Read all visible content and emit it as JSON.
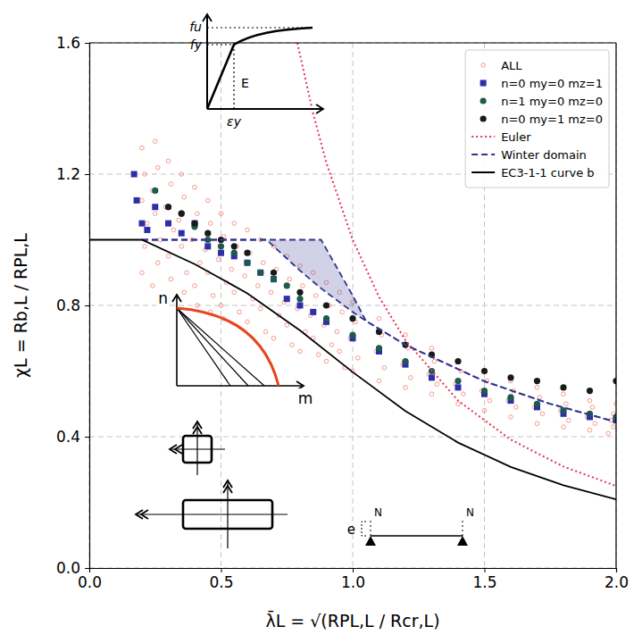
{
  "chart_data": {
    "type": "scatter",
    "x_label": "λ̄L = √(RPL,L / Rcr,L)",
    "y_label": "χL = Rb,L / RPL,L",
    "xlim": [
      0,
      2
    ],
    "ylim": [
      0,
      1.6
    ],
    "xticks": [
      {
        "value": 0,
        "label": "0.0"
      },
      {
        "value": 0.5,
        "label": "0.5"
      },
      {
        "value": 1,
        "label": "1.0"
      },
      {
        "value": 1.5,
        "label": "1.5"
      },
      {
        "value": 2,
        "label": "2.0"
      }
    ],
    "yticks": [
      {
        "value": 0,
        "label": "0.0"
      },
      0.4,
      0.8,
      1.2,
      1.6
    ],
    "grid": true,
    "legend": "upper right",
    "annotations": [
      "fu",
      "fy",
      "E",
      "εy",
      "n",
      "m",
      "e",
      "N",
      "N"
    ],
    "series": [
      {
        "name": "ALL",
        "type": "scatter",
        "marker": "circle-open",
        "color": "#f26b55",
        "x": [
          0.2,
          0.21,
          0.2,
          0.22,
          0.21,
          0.2,
          0.25,
          0.26,
          0.24,
          0.25,
          0.27,
          0.26,
          0.24,
          0.3,
          0.31,
          0.29,
          0.32,
          0.3,
          0.31,
          0.35,
          0.36,
          0.34,
          0.35,
          0.37,
          0.36,
          0.4,
          0.41,
          0.39,
          0.42,
          0.4,
          0.41,
          0.45,
          0.46,
          0.44,
          0.45,
          0.47,
          0.46,
          0.5,
          0.51,
          0.49,
          0.52,
          0.5,
          0.51,
          0.55,
          0.56,
          0.54,
          0.55,
          0.57,
          0.6,
          0.61,
          0.59,
          0.62,
          0.6,
          0.65,
          0.66,
          0.64,
          0.65,
          0.67,
          0.7,
          0.71,
          0.69,
          0.72,
          0.7,
          0.75,
          0.76,
          0.74,
          0.75,
          0.77,
          0.8,
          0.81,
          0.79,
          0.82,
          0.8,
          0.85,
          0.86,
          0.84,
          0.85,
          0.87,
          0.9,
          0.91,
          0.89,
          0.92,
          0.9,
          0.95,
          0.96,
          0.94,
          0.95,
          0.97,
          1.0,
          1.01,
          0.99,
          1.02,
          1.0,
          1.1,
          1.11,
          1.09,
          1.12,
          1.1,
          1.2,
          1.21,
          1.19,
          1.22,
          1.2,
          1.3,
          1.31,
          1.29,
          1.32,
          1.3,
          1.4,
          1.41,
          1.39,
          1.42,
          1.4,
          1.5,
          1.51,
          1.49,
          1.52,
          1.5,
          1.6,
          1.61,
          1.59,
          1.62,
          1.6,
          1.7,
          1.71,
          1.69,
          1.72,
          1.7,
          1.8,
          1.81,
          1.79,
          1.82,
          1.8,
          1.9,
          1.91,
          1.89,
          1.92,
          1.9,
          2.0,
          1.99,
          1.98,
          1.99,
          1.97
        ],
        "values": [
          1.28,
          1.2,
          1.12,
          1.05,
          0.98,
          0.9,
          1.3,
          1.22,
          1.15,
          1.08,
          1.0,
          0.93,
          0.86,
          1.24,
          1.17,
          1.1,
          1.03,
          0.95,
          0.88,
          1.2,
          1.13,
          1.06,
          0.98,
          0.9,
          0.84,
          1.16,
          1.08,
          1.0,
          0.93,
          0.86,
          0.8,
          1.12,
          1.05,
          0.97,
          0.9,
          0.83,
          0.78,
          1.08,
          1.01,
          0.94,
          0.87,
          0.8,
          0.76,
          1.05,
          0.98,
          0.91,
          0.84,
          0.78,
          1.03,
          0.96,
          0.89,
          0.82,
          0.75,
          1.0,
          0.93,
          0.86,
          0.79,
          0.72,
          0.98,
          0.91,
          0.84,
          0.77,
          0.7,
          0.95,
          0.88,
          0.81,
          0.74,
          0.68,
          0.92,
          0.86,
          0.79,
          0.72,
          0.66,
          0.9,
          0.83,
          0.77,
          0.7,
          0.65,
          0.87,
          0.8,
          0.74,
          0.68,
          0.63,
          0.84,
          0.78,
          0.72,
          0.66,
          0.61,
          0.81,
          0.75,
          0.7,
          0.64,
          0.6,
          0.76,
          0.71,
          0.66,
          0.61,
          0.57,
          0.71,
          0.67,
          0.62,
          0.58,
          0.55,
          0.67,
          0.63,
          0.59,
          0.56,
          0.53,
          0.63,
          0.6,
          0.56,
          0.53,
          0.5,
          0.6,
          0.57,
          0.54,
          0.51,
          0.48,
          0.57,
          0.54,
          0.51,
          0.49,
          0.46,
          0.55,
          0.52,
          0.49,
          0.47,
          0.44,
          0.53,
          0.5,
          0.48,
          0.45,
          0.43,
          0.51,
          0.49,
          0.46,
          0.44,
          0.42,
          0.5,
          0.47,
          0.45,
          0.43,
          0.41
        ]
      },
      {
        "name": "n=0 my=0 mz=1",
        "type": "scatter",
        "marker": "square",
        "color": "#2e2ea8",
        "x": [
          0.17,
          0.18,
          0.2,
          0.22,
          0.25,
          0.3,
          0.35,
          0.4,
          0.45,
          0.5,
          0.55,
          0.6,
          0.65,
          0.7,
          0.75,
          0.8,
          0.85,
          0.9,
          1.0,
          1.1,
          1.2,
          1.3,
          1.4,
          1.5,
          1.6,
          1.7,
          1.8,
          1.9,
          2.0
        ],
        "values": [
          1.2,
          1.12,
          1.05,
          1.03,
          1.1,
          1.05,
          1.02,
          1.05,
          0.98,
          0.96,
          0.95,
          0.93,
          0.9,
          0.88,
          0.82,
          0.8,
          0.78,
          0.75,
          0.7,
          0.66,
          0.62,
          0.58,
          0.55,
          0.53,
          0.51,
          0.49,
          0.47,
          0.46,
          0.45
        ]
      },
      {
        "name": "n=1 my=0 mz=0",
        "type": "scatter",
        "marker": "circle",
        "color": "#1e5a4e",
        "x": [
          0.25,
          0.3,
          0.35,
          0.4,
          0.45,
          0.5,
          0.55,
          0.6,
          0.65,
          0.7,
          0.75,
          0.8,
          0.9,
          1.0,
          1.1,
          1.2,
          1.3,
          1.4,
          1.5,
          1.6,
          1.7,
          1.8,
          1.9,
          2.0
        ],
        "values": [
          1.15,
          1.1,
          1.08,
          1.04,
          1.0,
          0.98,
          0.96,
          0.93,
          0.9,
          0.88,
          0.86,
          0.82,
          0.76,
          0.71,
          0.67,
          0.63,
          0.6,
          0.57,
          0.54,
          0.52,
          0.5,
          0.48,
          0.47,
          0.46
        ]
      },
      {
        "name": "n=0 my=1 mz=0",
        "type": "scatter",
        "marker": "circle",
        "color": "#1a1a1a",
        "x": [
          0.3,
          0.35,
          0.4,
          0.45,
          0.5,
          0.55,
          0.6,
          0.7,
          0.8,
          0.9,
          1.0,
          1.1,
          1.2,
          1.3,
          1.4,
          1.5,
          1.6,
          1.7,
          1.8,
          1.9,
          2.0
        ],
        "values": [
          1.1,
          1.08,
          1.05,
          1.02,
          1.0,
          0.98,
          0.96,
          0.9,
          0.84,
          0.8,
          0.76,
          0.72,
          0.68,
          0.65,
          0.63,
          0.6,
          0.58,
          0.57,
          0.55,
          0.54,
          0.57
        ]
      },
      {
        "name": "Euler",
        "type": "line",
        "line_style": "dotted",
        "color": "#e8304f",
        "x": [
          0.79,
          0.85,
          0.9,
          1.0,
          1.1,
          1.2,
          1.4,
          1.6,
          1.8,
          2.0
        ],
        "values": [
          1.6,
          1.384,
          1.235,
          1.0,
          0.826,
          0.694,
          0.51,
          0.391,
          0.309,
          0.25
        ]
      },
      {
        "name": "Winter domain",
        "type": "area",
        "line_style": "dashed",
        "color": "#34338f",
        "x": [
          0.2,
          0.673,
          0.8,
          0.88,
          1.0,
          1.05,
          1.2,
          1.5,
          1.75,
          2.0
        ],
        "values": [
          1.0,
          1.0,
          0.906,
          0.852,
          0.78,
          0.753,
          0.68,
          0.569,
          0.5,
          0.445
        ],
        "values_upper": [
          1.0,
          1.0,
          1.0,
          1.0,
          0.83,
          0.753,
          0.68,
          0.569,
          0.5,
          0.445
        ]
      },
      {
        "name": "EC3-1-1 curve b",
        "type": "line",
        "line_style": "solid",
        "color": "#000000",
        "x": [
          0,
          0.2,
          0.4,
          0.6,
          0.8,
          1.0,
          1.2,
          1.4,
          1.6,
          1.8,
          2.0
        ],
        "values": [
          1.0,
          1.0,
          0.926,
          0.837,
          0.724,
          0.597,
          0.478,
          0.382,
          0.308,
          0.252,
          0.209
        ]
      }
    ]
  }
}
